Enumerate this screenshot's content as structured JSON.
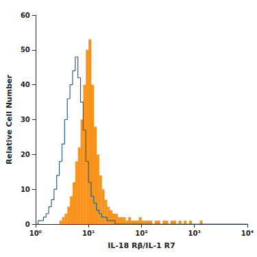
{
  "chart_data": {
    "type": "histogram",
    "x_label": "IL-18 Rβ/IL-1 R7",
    "y_label": "Relative Cell Number",
    "log": "x",
    "grid": false,
    "xlim": [
      1,
      10000
    ],
    "xticks": [
      {
        "value": 1,
        "label": "10⁰"
      },
      {
        "value": 10,
        "label": "10¹"
      },
      {
        "value": 100,
        "label": "10²"
      },
      {
        "value": 1000,
        "label": "10³"
      },
      {
        "value": 10000,
        "label": "10⁴"
      }
    ],
    "ylim": [
      0,
      60
    ],
    "yticks": [
      0,
      10,
      20,
      30,
      40,
      50,
      60
    ],
    "bins": [
      1,
      1.122,
      1.259,
      1.413,
      1.585,
      1.778,
      1.995,
      2.239,
      2.512,
      2.818,
      3.162,
      3.548,
      3.981,
      4.467,
      5.012,
      5.623,
      6.31,
      7.079,
      7.943,
      8.913,
      10,
      11.22,
      12.59,
      14.13,
      15.85,
      17.78,
      19.95,
      22.39,
      25.12,
      28.18,
      31.62,
      35.48,
      39.81,
      44.67,
      50.12,
      56.23,
      63.1,
      70.79,
      79.43,
      89.13,
      100,
      112.2,
      125.9,
      141.3,
      158.5,
      177.8,
      199.5,
      223.9,
      251.2,
      281.8,
      316.2,
      354.8,
      398.1,
      446.7,
      501.2,
      562.3,
      631,
      707.9,
      794.3,
      891.3,
      1000,
      1122,
      1259,
      1413,
      1585,
      1778,
      1995,
      2239,
      2512,
      2818,
      3162,
      3548,
      3981,
      4467,
      5012,
      5623,
      6310,
      7079,
      7943,
      8913,
      10000
    ],
    "series": [
      {
        "type": "bar",
        "color": "#f7941d",
        "values": [
          0,
          0,
          0,
          0,
          0,
          0,
          0,
          0,
          0,
          1,
          2,
          3,
          5,
          8,
          12,
          18,
          22,
          30,
          40,
          50,
          53,
          40,
          28,
          20,
          14,
          10,
          7,
          5,
          4,
          3,
          3,
          2,
          2,
          2,
          1,
          2,
          1,
          1,
          1,
          2,
          1,
          1,
          1,
          1,
          0,
          1,
          1,
          0,
          1,
          1,
          0,
          1,
          1,
          0,
          1,
          0,
          1,
          0,
          1,
          0,
          0,
          0,
          1,
          0,
          0,
          0,
          0,
          0,
          0,
          0,
          0,
          0,
          0,
          0,
          0,
          0,
          0,
          0,
          0,
          0
        ]
      },
      {
        "type": "step",
        "color": "#2b5f86",
        "line_style": "solid",
        "values": [
          0,
          1,
          1,
          2,
          3,
          5,
          7,
          10,
          14,
          18,
          23,
          30,
          36,
          40,
          44,
          48,
          42,
          35,
          27,
          18,
          12,
          8,
          6,
          4,
          3,
          2,
          2,
          1,
          1,
          1,
          0,
          0,
          0,
          0,
          0,
          0,
          0,
          0,
          0,
          0,
          0,
          0,
          0,
          0,
          0,
          0,
          0,
          0,
          0,
          0,
          0,
          0,
          0,
          0,
          0,
          0,
          0,
          0,
          0,
          0,
          0,
          0,
          0,
          0,
          0,
          0,
          0,
          0,
          0,
          0,
          0,
          0,
          0,
          0,
          0,
          0,
          0,
          0,
          0,
          0
        ]
      }
    ]
  }
}
